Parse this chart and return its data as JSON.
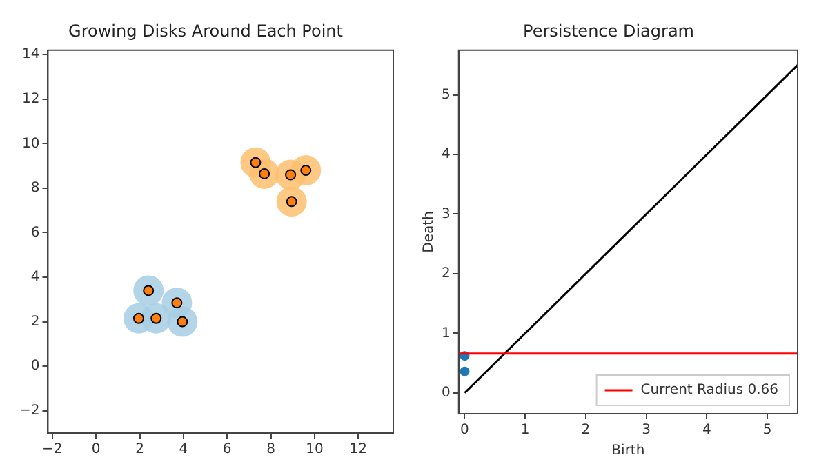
{
  "chart_data": [
    {
      "type": "scatter",
      "title": "Growing Disks Around Each Point",
      "xlim": [
        -2.2,
        13.6
      ],
      "ylim": [
        -3,
        14.2
      ],
      "xticks": [
        -2,
        0,
        2,
        4,
        6,
        8,
        10,
        12
      ],
      "yticks": [
        -2,
        0,
        2,
        4,
        6,
        8,
        10,
        12,
        14
      ],
      "grid": false,
      "legend": false,
      "series": [
        {
          "type": "bubble",
          "color": "#a6cee3",
          "x": [
            2.4,
            3.7,
            1.95,
            2.75,
            3.95
          ],
          "values": [
            3.4,
            2.85,
            2.15,
            2.15,
            2.0
          ],
          "sizes": [
            1,
            1,
            1,
            1,
            1
          ]
        },
        {
          "type": "bubble",
          "color": "#fdbf6f",
          "x": [
            7.3,
            7.7,
            8.9,
            9.6,
            8.95
          ],
          "values": [
            9.15,
            8.65,
            8.6,
            8.8,
            7.4
          ],
          "sizes": [
            1,
            1,
            1,
            1,
            1
          ]
        },
        {
          "color": "#ff7f0e",
          "marker": "circle",
          "x": [
            2.4,
            3.7,
            1.95,
            2.75,
            3.95,
            7.3,
            7.7,
            8.9,
            9.6,
            8.95
          ],
          "values": [
            3.4,
            2.85,
            2.15,
            2.15,
            2.0,
            9.15,
            8.65,
            8.6,
            8.8,
            7.4
          ]
        }
      ]
    },
    {
      "type": "scatter",
      "title": "Persistence Diagram",
      "xlabel": "Birth",
      "ylabel": "Death",
      "xlim": [
        -0.1,
        5.5
      ],
      "ylim": [
        -0.35,
        5.75
      ],
      "xticks": [
        0,
        1,
        2,
        3,
        4,
        5
      ],
      "yticks": [
        0,
        1,
        2,
        3,
        4,
        5
      ],
      "grid": false,
      "legend": "bottom right",
      "series": [
        {
          "type": "line",
          "color": "#000000",
          "line_style": "solid",
          "marker": "none",
          "x": [
            0,
            5.5
          ],
          "values": [
            0,
            5.5
          ]
        },
        {
          "color": "#1f77b4",
          "marker": "circle",
          "x": [
            0,
            0
          ],
          "values": [
            0.36,
            0.62
          ]
        }
      ],
      "ref_lines": [
        {
          "axis": "y",
          "value": 0.66,
          "label": "Current Radius 0.66",
          "color": "#ff0000"
        }
      ]
    }
  ]
}
